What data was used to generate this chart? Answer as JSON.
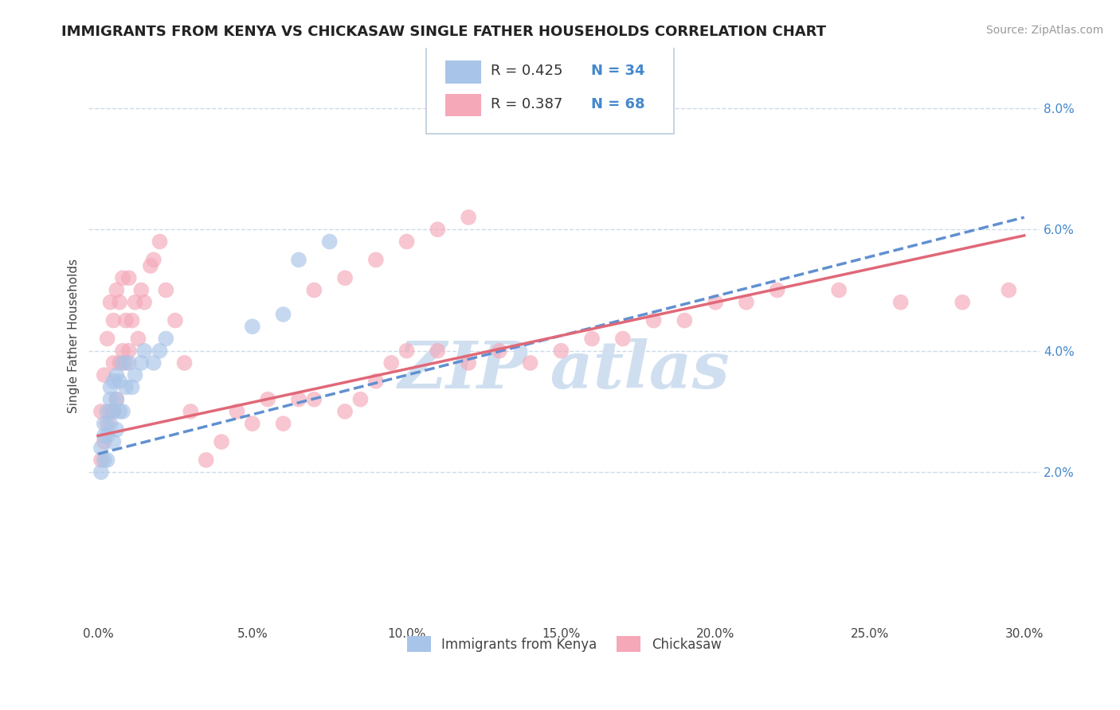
{
  "title": "IMMIGRANTS FROM KENYA VS CHICKASAW SINGLE FATHER HOUSEHOLDS CORRELATION CHART",
  "source": "Source: ZipAtlas.com",
  "ylabel": "Single Father Households",
  "xlim": [
    -0.003,
    0.305
  ],
  "ylim": [
    -0.005,
    0.09
  ],
  "xtick_labels": [
    "0.0%",
    "5.0%",
    "10.0%",
    "15.0%",
    "20.0%",
    "25.0%",
    "30.0%"
  ],
  "xtick_vals": [
    0.0,
    0.05,
    0.1,
    0.15,
    0.2,
    0.25,
    0.3
  ],
  "ytick_labels": [
    "2.0%",
    "4.0%",
    "6.0%",
    "8.0%"
  ],
  "ytick_vals": [
    0.02,
    0.04,
    0.06,
    0.08
  ],
  "legend_r1": "R = 0.425",
  "legend_n1": "N = 34",
  "legend_r2": "R = 0.387",
  "legend_n2": "N = 68",
  "legend_label1": "Immigrants from Kenya",
  "legend_label2": "Chickasaw",
  "color_blue": "#a8c4e8",
  "color_pink": "#f4a8b8",
  "line_blue": "#6090d0",
  "line_pink": "#e06878",
  "watermark_color": "#d0dff0",
  "background_color": "#ffffff",
  "grid_color": "#c8d8e8",
  "kenya_x": [
    0.001,
    0.001,
    0.002,
    0.002,
    0.002,
    0.003,
    0.003,
    0.003,
    0.004,
    0.004,
    0.004,
    0.005,
    0.005,
    0.005,
    0.006,
    0.006,
    0.006,
    0.007,
    0.007,
    0.008,
    0.008,
    0.009,
    0.01,
    0.011,
    0.012,
    0.014,
    0.015,
    0.018,
    0.02,
    0.022,
    0.05,
    0.06,
    0.065,
    0.075
  ],
  "kenya_y": [
    0.024,
    0.02,
    0.022,
    0.026,
    0.028,
    0.022,
    0.026,
    0.03,
    0.028,
    0.032,
    0.034,
    0.025,
    0.03,
    0.035,
    0.027,
    0.032,
    0.036,
    0.03,
    0.035,
    0.03,
    0.038,
    0.034,
    0.038,
    0.034,
    0.036,
    0.038,
    0.04,
    0.038,
    0.04,
    0.042,
    0.044,
    0.046,
    0.055,
    0.058
  ],
  "chickasaw_x": [
    0.001,
    0.001,
    0.002,
    0.002,
    0.003,
    0.003,
    0.004,
    0.004,
    0.005,
    0.005,
    0.005,
    0.006,
    0.006,
    0.007,
    0.007,
    0.008,
    0.008,
    0.009,
    0.009,
    0.01,
    0.01,
    0.011,
    0.012,
    0.013,
    0.014,
    0.015,
    0.017,
    0.018,
    0.02,
    0.022,
    0.025,
    0.028,
    0.03,
    0.035,
    0.04,
    0.045,
    0.05,
    0.055,
    0.06,
    0.065,
    0.07,
    0.08,
    0.085,
    0.09,
    0.095,
    0.1,
    0.11,
    0.12,
    0.13,
    0.14,
    0.15,
    0.16,
    0.17,
    0.18,
    0.19,
    0.2,
    0.21,
    0.22,
    0.24,
    0.26,
    0.28,
    0.295,
    0.07,
    0.08,
    0.09,
    0.1,
    0.11,
    0.12
  ],
  "chickasaw_y": [
    0.022,
    0.03,
    0.025,
    0.036,
    0.028,
    0.042,
    0.03,
    0.048,
    0.03,
    0.038,
    0.045,
    0.032,
    0.05,
    0.038,
    0.048,
    0.04,
    0.052,
    0.038,
    0.045,
    0.04,
    0.052,
    0.045,
    0.048,
    0.042,
    0.05,
    0.048,
    0.054,
    0.055,
    0.058,
    0.05,
    0.045,
    0.038,
    0.03,
    0.022,
    0.025,
    0.03,
    0.028,
    0.032,
    0.028,
    0.032,
    0.032,
    0.03,
    0.032,
    0.035,
    0.038,
    0.04,
    0.04,
    0.038,
    0.04,
    0.038,
    0.04,
    0.042,
    0.042,
    0.045,
    0.045,
    0.048,
    0.048,
    0.05,
    0.05,
    0.048,
    0.048,
    0.05,
    0.05,
    0.052,
    0.055,
    0.058,
    0.06,
    0.062
  ]
}
